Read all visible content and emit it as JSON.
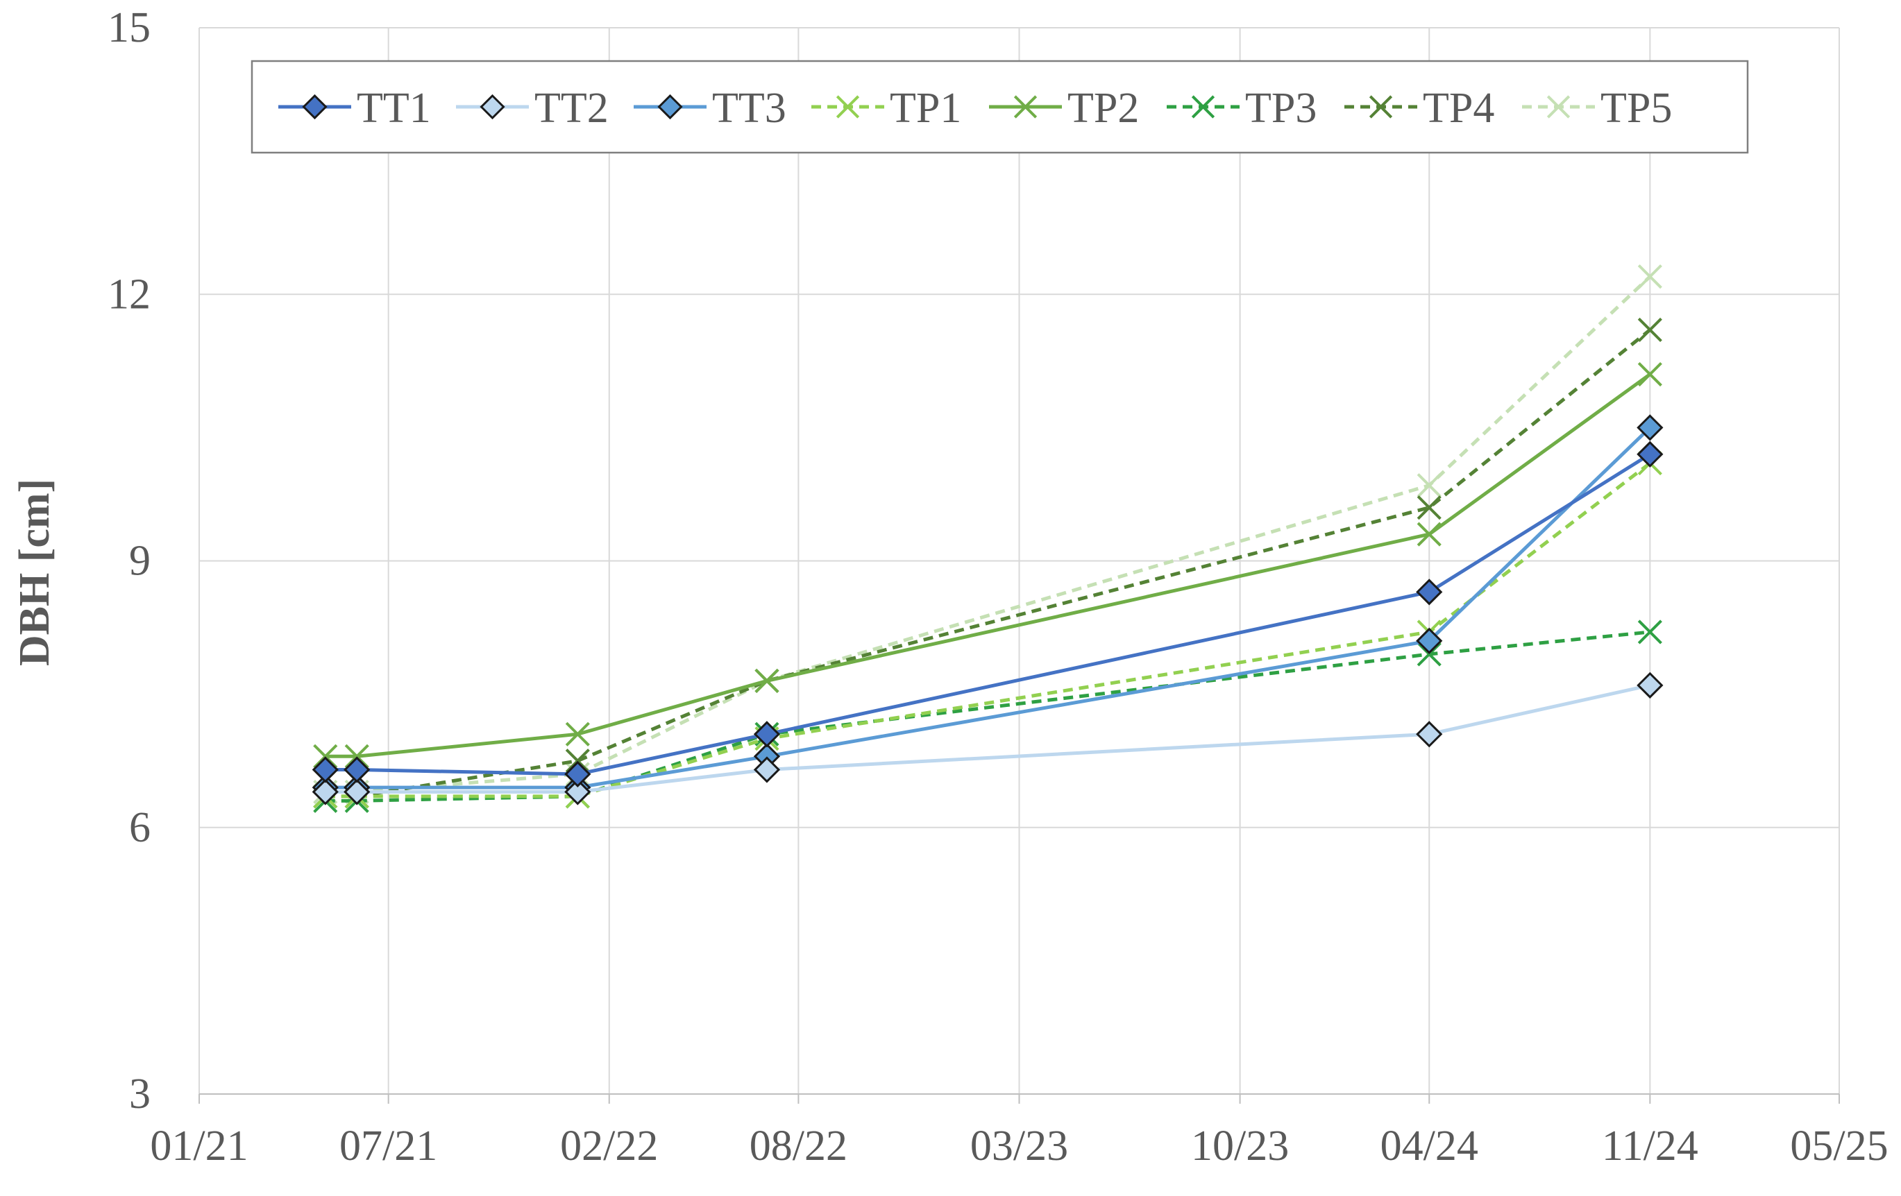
{
  "chart_data": {
    "type": "line",
    "title": "",
    "xlabel": "",
    "ylabel": "DBH [cm]",
    "ylim": [
      3,
      15
    ],
    "yticks": [
      3,
      6,
      9,
      12,
      15
    ],
    "xlim": [
      "2021-01",
      "2025-05"
    ],
    "xticks": [
      "01/21",
      "07/21",
      "02/22",
      "08/22",
      "03/23",
      "10/23",
      "04/24",
      "11/24",
      "05/25"
    ],
    "grid": true,
    "legend_position": "top",
    "series": [
      {
        "name": "TT1",
        "color": "#4472c4",
        "dash": false,
        "marker": "diamond",
        "x": [
          "2021-05",
          "2021-06",
          "2022-01",
          "2022-07",
          "2024-04",
          "2024-11"
        ],
        "values": [
          6.65,
          6.65,
          6.6,
          7.05,
          8.65,
          10.2
        ]
      },
      {
        "name": "TT2",
        "color": "#bdd7ee",
        "dash": false,
        "marker": "diamond",
        "x": [
          "2021-05",
          "2021-06",
          "2022-01",
          "2022-07",
          "2024-04",
          "2024-11"
        ],
        "values": [
          6.4,
          6.4,
          6.4,
          6.65,
          7.05,
          7.6
        ]
      },
      {
        "name": "TT3",
        "color": "#5b9bd5",
        "dash": false,
        "marker": "diamond",
        "x": [
          "2021-05",
          "2021-06",
          "2022-01",
          "2022-07",
          "2024-04",
          "2024-11"
        ],
        "values": [
          6.45,
          6.45,
          6.45,
          6.8,
          8.1,
          10.5
        ]
      },
      {
        "name": "TP1",
        "color": "#92d050",
        "dash": true,
        "marker": "x",
        "x": [
          "2021-05",
          "2021-06",
          "2022-01",
          "2022-07",
          "2024-04",
          "2024-11"
        ],
        "values": [
          6.35,
          6.35,
          6.35,
          7.0,
          8.2,
          10.1
        ]
      },
      {
        "name": "TP2",
        "color": "#70ad47",
        "dash": false,
        "marker": "x",
        "x": [
          "2021-05",
          "2021-06",
          "2022-01",
          "2022-07",
          "2024-04",
          "2024-11"
        ],
        "values": [
          6.8,
          6.8,
          7.05,
          7.65,
          9.3,
          11.1
        ]
      },
      {
        "name": "TP3",
        "color": "#2ea043",
        "dash": true,
        "marker": "x",
        "x": [
          "2021-05",
          "2021-06",
          "2022-01",
          "2022-07",
          "2024-04",
          "2024-11"
        ],
        "values": [
          6.3,
          6.3,
          6.35,
          7.05,
          7.95,
          8.2
        ]
      },
      {
        "name": "TP4",
        "color": "#548235",
        "dash": true,
        "marker": "x",
        "x": [
          "2021-05",
          "2021-06",
          "2022-01",
          "2022-07",
          "2024-04",
          "2024-11"
        ],
        "values": [
          6.35,
          6.35,
          6.75,
          7.65,
          9.6,
          11.6
        ]
      },
      {
        "name": "TP5",
        "color": "#c5e0b4",
        "dash": true,
        "marker": "x",
        "x": [
          "2021-05",
          "2021-06",
          "2022-01",
          "2022-07",
          "2024-04",
          "2024-11"
        ],
        "values": [
          6.4,
          6.4,
          6.6,
          7.65,
          9.85,
          12.2
        ]
      }
    ]
  }
}
